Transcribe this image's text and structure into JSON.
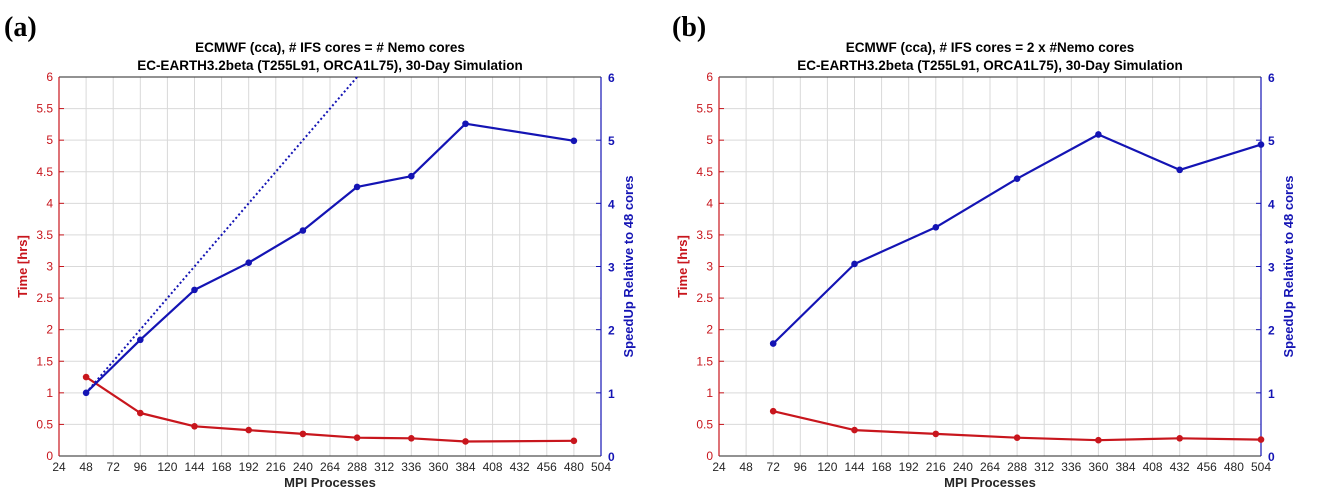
{
  "chart_data": [
    {
      "type": "line",
      "panel_label": "(a)",
      "title_line1": "ECMWF (cca), # IFS cores = # Nemo cores",
      "title_line2": "EC-EARTH3.2beta (T255L91, ORCA1L75), 30-Day Simulation",
      "xlabel": "MPI Processes",
      "ylabel_left": "Time [hrs]",
      "ylabel_right": "SpeedUp Relative to 48 cores",
      "xlim": [
        24,
        504
      ],
      "ylim_left": [
        0,
        6
      ],
      "ylim_right": [
        0,
        6
      ],
      "xticks": [
        "24",
        "48",
        "72",
        "96",
        "120",
        "144",
        "168",
        "192",
        "216",
        "240",
        "264",
        "288",
        "312",
        "336",
        "360",
        "384",
        "408",
        "432",
        "456",
        "480",
        "504"
      ],
      "yticks_left": [
        "0",
        "0.5",
        "1",
        "1.5",
        "2",
        "2.5",
        "3",
        "3.5",
        "4",
        "4.5",
        "5",
        "5.5",
        "6"
      ],
      "yticks_right": [
        "0",
        "1",
        "2",
        "3",
        "4",
        "5",
        "6"
      ],
      "grid": true,
      "series": [
        {
          "axis": "left",
          "color": "#c8161d",
          "x": [
            48,
            96,
            144,
            192,
            240,
            288,
            336,
            384,
            480
          ],
          "y": [
            1.25,
            0.68,
            0.47,
            0.41,
            0.35,
            0.29,
            0.28,
            0.23,
            0.24
          ]
        },
        {
          "axis": "right",
          "color": "#1414b4",
          "x": [
            48,
            96,
            144,
            192,
            240,
            288,
            336,
            384,
            480
          ],
          "y": [
            1.0,
            1.84,
            2.63,
            3.06,
            3.57,
            4.26,
            4.43,
            5.26,
            4.99
          ]
        },
        {
          "axis": "right",
          "color": "#1414b4",
          "style": "dotted",
          "x": [
            48,
            288
          ],
          "y": [
            1.0,
            6.0
          ]
        }
      ]
    },
    {
      "type": "line",
      "panel_label": "(b)",
      "title_line1": "ECMWF (cca), # IFS cores = 2 x #Nemo cores",
      "title_line2": "EC-EARTH3.2beta (T255L91, ORCA1L75), 30-Day Simulation",
      "xlabel": "MPI Processes",
      "ylabel_left": "Time [hrs]",
      "ylabel_right": "SpeedUp Relative to 48 cores",
      "xlim": [
        24,
        504
      ],
      "ylim_left": [
        0,
        6
      ],
      "ylim_right": [
        0,
        6
      ],
      "xticks": [
        "24",
        "48",
        "72",
        "96",
        "120",
        "144",
        "168",
        "192",
        "216",
        "240",
        "264",
        "288",
        "312",
        "336",
        "360",
        "384",
        "408",
        "432",
        "456",
        "480",
        "504"
      ],
      "yticks_left": [
        "0",
        "0.5",
        "1",
        "1.5",
        "2",
        "2.5",
        "3",
        "3.5",
        "4",
        "4.5",
        "5",
        "5.5",
        "6"
      ],
      "yticks_right": [
        "0",
        "1",
        "2",
        "3",
        "4",
        "5",
        "6"
      ],
      "grid": true,
      "series": [
        {
          "axis": "left",
          "color": "#c8161d",
          "x": [
            72,
            144,
            216,
            288,
            360,
            432,
            504
          ],
          "y": [
            0.71,
            0.41,
            0.35,
            0.29,
            0.25,
            0.28,
            0.26
          ]
        },
        {
          "axis": "right",
          "color": "#1414b4",
          "x": [
            72,
            144,
            216,
            288,
            360,
            432,
            504
          ],
          "y": [
            1.78,
            3.04,
            3.62,
            4.39,
            5.09,
            4.53,
            4.93
          ]
        }
      ]
    }
  ]
}
